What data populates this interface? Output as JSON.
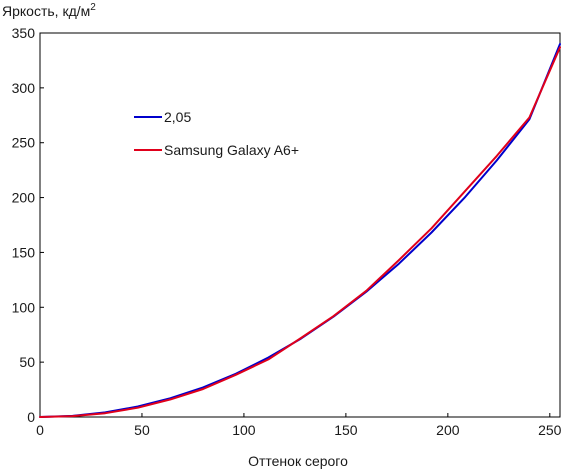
{
  "chart_data": {
    "type": "line",
    "title": "",
    "ylabel": "Яркость, кд/м",
    "ylabel_sup": "2",
    "xlabel": "Оттенок серого",
    "xlim": [
      0,
      255
    ],
    "ylim": [
      0,
      350
    ],
    "xticks": [
      0,
      50,
      100,
      150,
      200,
      250
    ],
    "yticks": [
      0,
      50,
      100,
      150,
      200,
      250,
      300,
      350
    ],
    "grid": false,
    "legend_position": "upper-left",
    "series": [
      {
        "name": "2,05",
        "color": "#0000cc",
        "x": [
          0,
          16,
          32,
          48,
          64,
          80,
          96,
          112,
          128,
          144,
          160,
          176,
          192,
          208,
          224,
          240,
          255
        ],
        "y": [
          0,
          1.0,
          4.2,
          9.6,
          17.1,
          27.0,
          39.4,
          54.2,
          71.5,
          91.5,
          114.2,
          139.7,
          168.2,
          199.5,
          233.9,
          271.3,
          340
        ]
      },
      {
        "name": "Samsung Galaxy A6+",
        "color": "#e0001b",
        "x": [
          0,
          16,
          32,
          48,
          64,
          80,
          96,
          112,
          128,
          144,
          160,
          176,
          192,
          208,
          224,
          240,
          255
        ],
        "y": [
          0,
          0.8,
          3.5,
          8.5,
          16.0,
          25.5,
          38.5,
          52.5,
          72.0,
          92.0,
          115.0,
          143.0,
          172.0,
          205.0,
          238.0,
          273.0,
          337
        ]
      }
    ]
  }
}
